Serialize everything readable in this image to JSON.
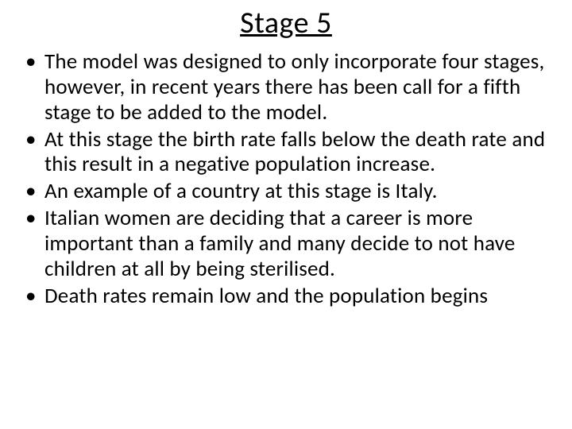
{
  "slide": {
    "title": "Stage 5",
    "title_fontsize": 38,
    "title_underline": true,
    "title_color": "#000000",
    "bullets": [
      "The model was designed to only incorporate four stages, however, in recent years there has been call for a fifth stage to be added to the model.",
      "At this stage the birth rate falls below the death rate and this result in a negative population increase.",
      "An example of a country at this stage is Italy.",
      "Italian women are deciding that a career is more important than a family and many decide to not have children at all by being sterilised.",
      "Death rates remain low and the population begins"
    ],
    "bullet_fontsize": 27,
    "bullet_color": "#000000",
    "background_color": "#ffffff",
    "font_family": "Calibri"
  }
}
